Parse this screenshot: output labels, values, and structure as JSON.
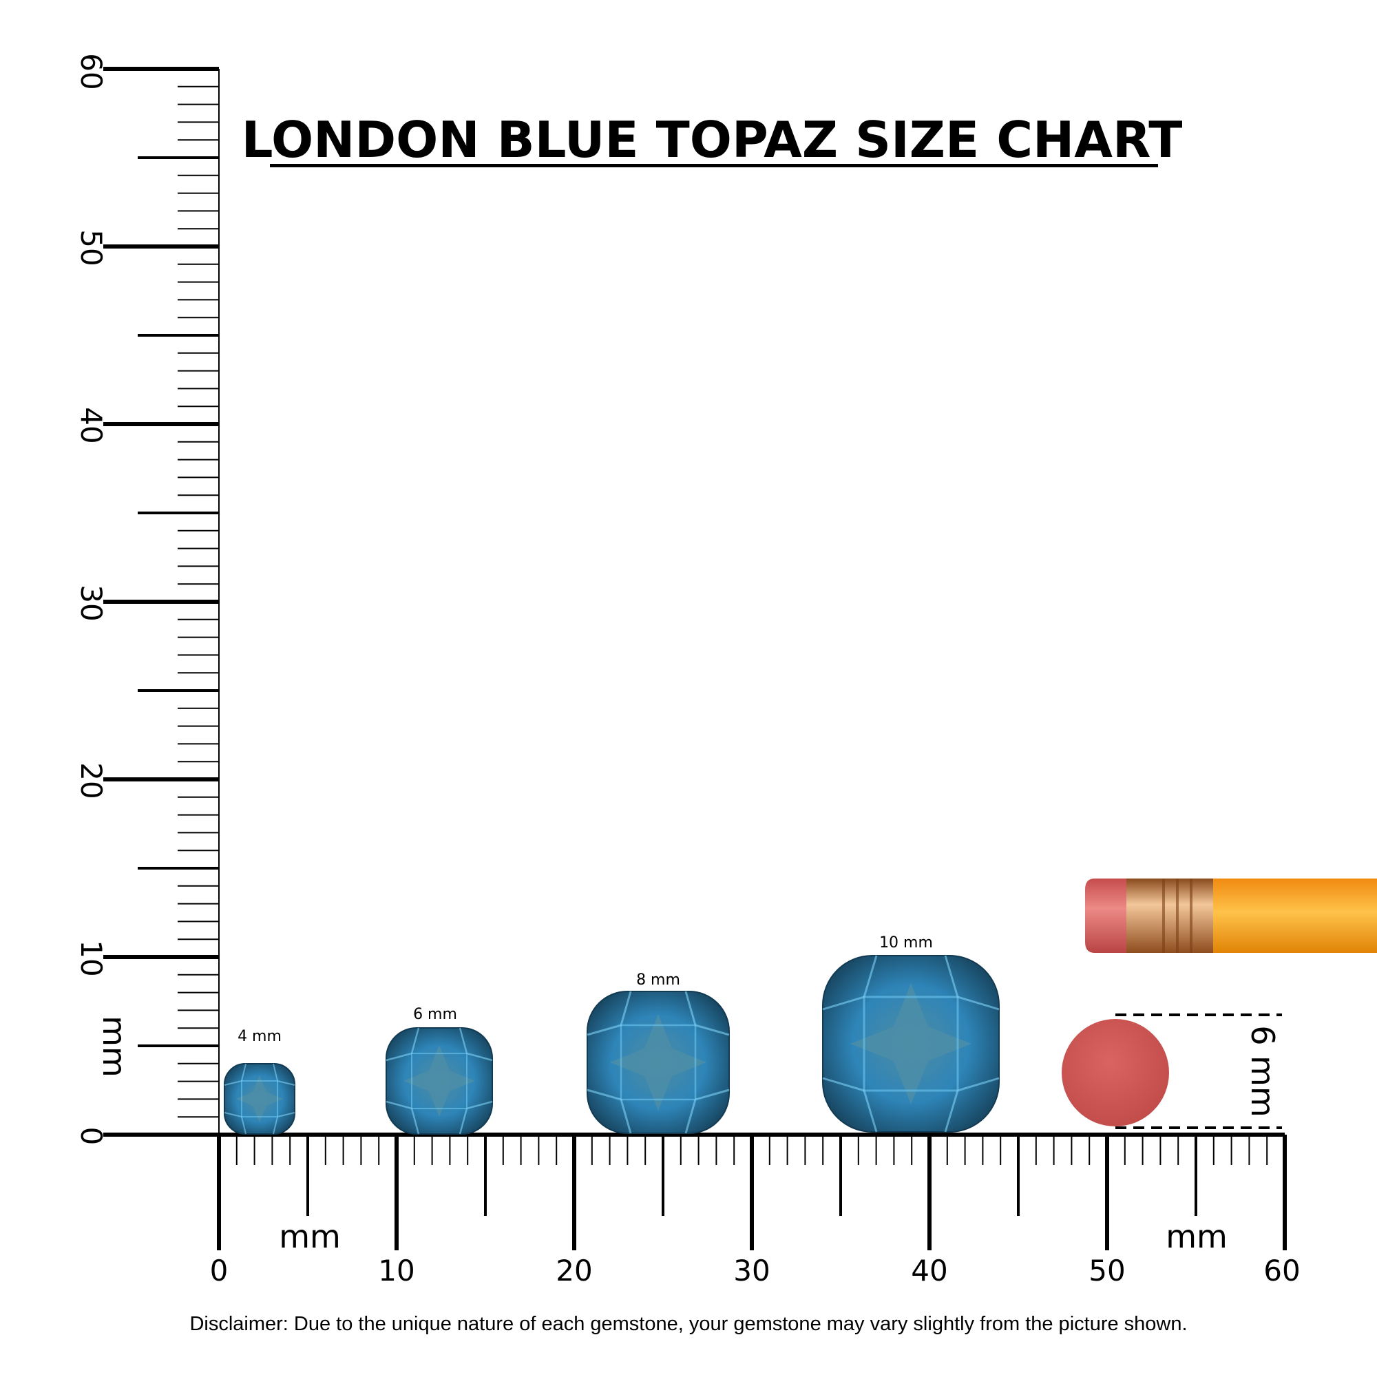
{
  "title": "LONDON BLUE TOPAZ SIZE CHART",
  "x_ruler": {
    "unit_label": "mm",
    "unit_label_right": "mm",
    "ticks": [
      "0",
      "10",
      "20",
      "30",
      "40",
      "50",
      "60"
    ]
  },
  "y_ruler": {
    "unit_label": "mm",
    "ticks": [
      "0",
      "10",
      "20",
      "30",
      "40",
      "50",
      "60"
    ]
  },
  "gemstones": [
    {
      "label": "4 mm",
      "size_mm": 4
    },
    {
      "label": "6 mm",
      "size_mm": 6
    },
    {
      "label": "8 mm",
      "size_mm": 8
    },
    {
      "label": "10 mm",
      "size_mm": 10
    }
  ],
  "eraser": {
    "label": "6 mm",
    "size_mm": 6
  },
  "disclaimer": "Disclaimer: Due to the unique nature of each gemstone, your gemstone may vary slightly from the picture shown.",
  "colors": {
    "gem_dark": "#1d4f6b",
    "gem_mid": "#2f8ec4",
    "gem_light": "#55b8e8",
    "gem_table": "#4a8aa6",
    "eraser": "#d35b59",
    "pencil": "#f7a21b",
    "ferrule": "#d89a62"
  }
}
